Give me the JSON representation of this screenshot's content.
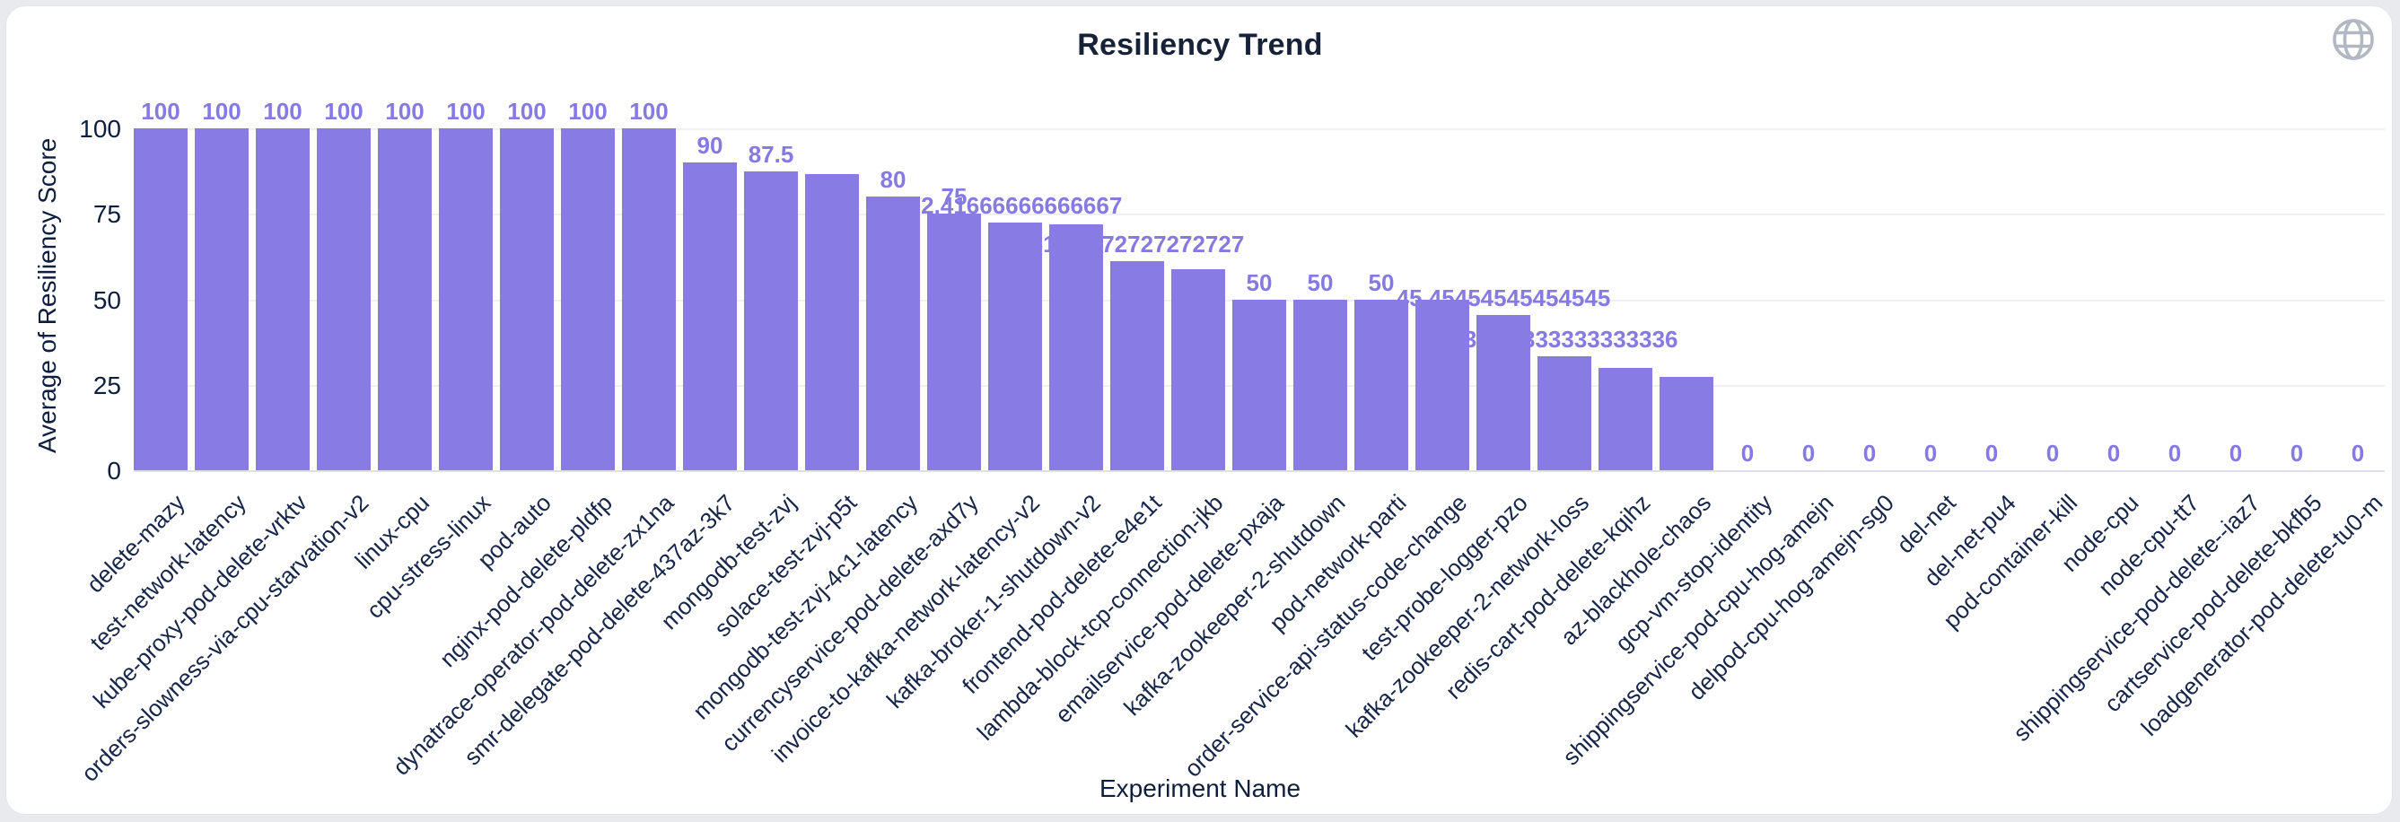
{
  "page": {
    "background": "#e9eaee",
    "card_background": "#ffffff"
  },
  "header": {
    "icon": "globe-icon",
    "icon_color": "#b2b8c2"
  },
  "chart_data": {
    "type": "bar",
    "title": "Resiliency Trend",
    "xlabel": "Experiment Name",
    "ylabel": "Average of Resiliency Score",
    "ylim": [
      0,
      100
    ],
    "yticks": [
      0,
      25,
      50,
      75,
      100
    ],
    "grid": true,
    "legend": "none",
    "bar_color": "#887ce3",
    "value_label_color": "#8579e2",
    "axis_text_color": "#0e1e3e",
    "categories": [
      "delete-mazy",
      "test-network-latency",
      "kube-proxy-pod-delete-vrktv",
      "orders-slowness-via-cpu-starvation-v2",
      "linux-cpu",
      "cpu-stress-linux",
      "pod-auto",
      "nginx-pod-delete-pldfp",
      "dynatrace-operator-pod-delete-zx1na",
      "smr-delegate-pod-delete-437az-3k7",
      "mongodb-test-zvj",
      "solace-test-zvj-p5t",
      "mongodb-test-zvj-4c1-latency",
      "currencyservice-pod-delete-axd7y",
      "invoice-to-kafka-network-latency-v2",
      "kafka-broker-1-shutdown-v2",
      "frontend-pod-delete-e4e1t",
      "lambda-block-tcp-connection-jkb",
      "emailservice-pod-delete-pxaja",
      "kafka-zookeeper-2-shutdown",
      "pod-network-parti",
      "order-service-api-status-code-change",
      "test-probe-logger-pzo",
      "kafka-zookeeper-2-network-loss",
      "redis-cart-pod-delete-kqihz",
      "az-blackhole-chaos",
      "gcp-vm-stop-identity",
      "shippingservice-pod-cpu-hog-amejn",
      "delpod-cpu-hog-amejn-sg0",
      "del-net",
      "del-net-pu4",
      "pod-container-kill",
      "node-cpu",
      "node-cpu-tt7",
      "shippingservice-pod-delete--iaz7",
      "cartservice-pod-delete-bkfb5",
      "loadgenerator-pod-delete-tu0-m"
    ],
    "values": [
      100,
      100,
      100,
      100,
      100,
      100,
      100,
      100,
      100,
      90,
      87.5,
      86.6,
      80,
      75,
      72.41666666666667,
      72,
      61.27272727272727,
      58.8,
      50,
      50,
      50,
      50,
      45.45454545454545,
      33.333333333333336,
      30,
      27.3,
      0,
      0,
      0,
      0,
      0,
      0,
      0,
      0,
      0,
      0,
      0
    ],
    "value_labels": [
      "100",
      "100",
      "100",
      "100",
      "100",
      "100",
      "100",
      "100",
      "100",
      "90",
      "87.5",
      null,
      "80",
      "75",
      "72.41666666666667",
      null,
      "61.27272727272727",
      null,
      "50",
      "50",
      "50",
      null,
      "45.45454545454545",
      "33.333333333333336",
      null,
      null,
      "0",
      "0",
      "0",
      "0",
      "0",
      "0",
      "0",
      "0",
      "0",
      "0",
      "0"
    ]
  }
}
